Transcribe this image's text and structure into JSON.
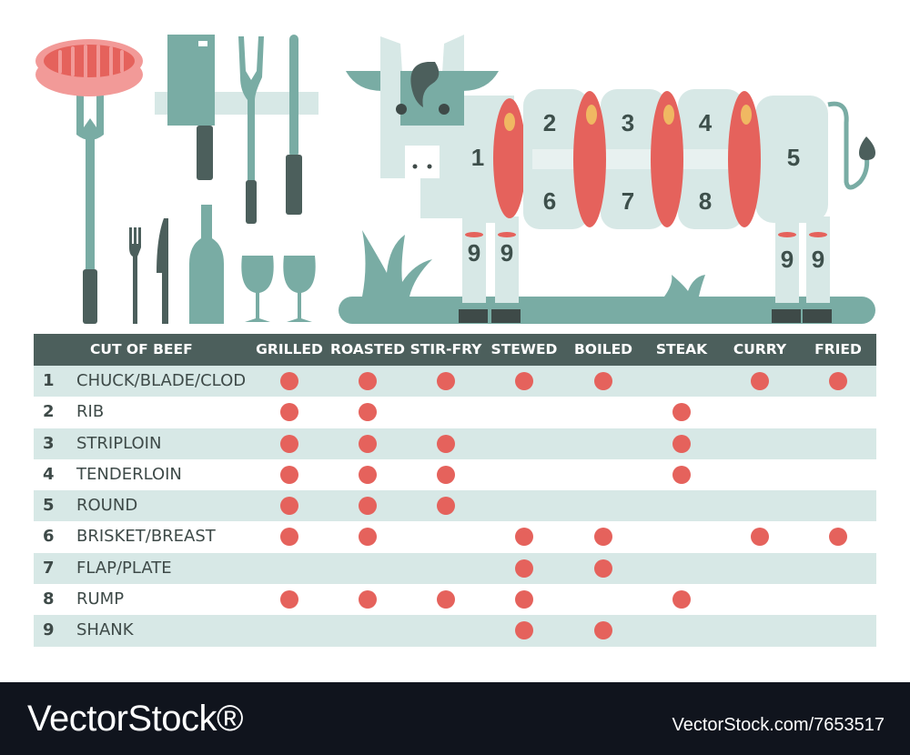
{
  "colors": {
    "teal": "#79aca4",
    "teal_dark": "#4c5f5c",
    "cow_body": "#d7e8e6",
    "meat_red": "#e5625c",
    "meat_light": "#f29a98",
    "fat_yellow": "#f0b862",
    "row_shade": "#d7e8e6",
    "footer_bg": "#10141d"
  },
  "cow_labels": [
    "1",
    "2",
    "3",
    "4",
    "5",
    "6",
    "7",
    "8",
    "9",
    "9",
    "9",
    "9"
  ],
  "illustration_icons": [
    "steak-on-fork-icon",
    "cleaver-icon",
    "carving-fork-icon",
    "sharpening-steel-icon",
    "fork-icon",
    "knife-icon",
    "wine-bottle-icon",
    "wine-glass-icon",
    "cow-icon",
    "grass-icon"
  ],
  "table": {
    "header": {
      "cut": "CUT OF BEEF",
      "methods": [
        "GRILLED",
        "ROASTED",
        "STIR-FRY",
        "STEWED",
        "BOILED",
        "STEAK",
        "CURRY",
        "FRIED"
      ]
    },
    "rows": [
      {
        "num": "1",
        "name": "CHUCK/BLADE/CLOD",
        "marks": [
          1,
          1,
          1,
          1,
          1,
          0,
          1,
          1
        ]
      },
      {
        "num": "2",
        "name": "RIB",
        "marks": [
          1,
          1,
          0,
          0,
          0,
          1,
          0,
          0
        ]
      },
      {
        "num": "3",
        "name": "STRIPLOIN",
        "marks": [
          1,
          1,
          1,
          0,
          0,
          1,
          0,
          0
        ]
      },
      {
        "num": "4",
        "name": "TENDERLOIN",
        "marks": [
          1,
          1,
          1,
          0,
          0,
          1,
          0,
          0
        ]
      },
      {
        "num": "5",
        "name": "ROUND",
        "marks": [
          1,
          1,
          1,
          0,
          0,
          0,
          0,
          0
        ]
      },
      {
        "num": "6",
        "name": "BRISKET/BREAST",
        "marks": [
          1,
          1,
          0,
          1,
          1,
          0,
          1,
          1
        ]
      },
      {
        "num": "7",
        "name": "FLAP/PLATE",
        "marks": [
          0,
          0,
          0,
          1,
          1,
          0,
          0,
          0
        ]
      },
      {
        "num": "8",
        "name": "RUMP",
        "marks": [
          1,
          1,
          1,
          1,
          0,
          1,
          0,
          0
        ]
      },
      {
        "num": "9",
        "name": "SHANK",
        "marks": [
          0,
          0,
          0,
          1,
          1,
          0,
          0,
          0
        ]
      }
    ]
  },
  "footer": {
    "brand": "VectorStock®",
    "ref": "VectorStock.com/7653517"
  }
}
